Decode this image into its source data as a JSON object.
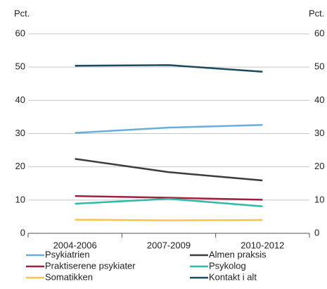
{
  "chart_data": {
    "type": "line",
    "ylabel": "Pct.",
    "y2label": "Pct.",
    "categories": [
      "2004-2006",
      "2007-2009",
      "2010-2012"
    ],
    "series": [
      {
        "name": "Psykiatrien",
        "color": "#6aaede",
        "values": [
          30.2,
          31.8,
          32.6
        ]
      },
      {
        "name": "Almen praksis",
        "color": "#3d3d3d",
        "values": [
          22.4,
          18.4,
          15.9
        ]
      },
      {
        "name": "Praktiserene psykiater",
        "color": "#a31e3f",
        "values": [
          11.2,
          10.7,
          10.1
        ]
      },
      {
        "name": "Psykolog",
        "color": "#2fbba5",
        "values": [
          8.9,
          10.4,
          8.1
        ]
      },
      {
        "name": "Somatikken",
        "color": "#f7c548",
        "values": [
          4.1,
          3.9,
          4.0
        ]
      },
      {
        "name": "Kontakt i alt",
        "color": "#1b4b5c",
        "values": [
          50.4,
          50.6,
          48.6
        ]
      }
    ],
    "ylim": [
      0,
      60
    ],
    "yticks": [
      0,
      10,
      20,
      30,
      40,
      50,
      60
    ],
    "y2lim": [
      0,
      60
    ],
    "y2ticks": [
      0,
      10,
      20,
      30,
      40,
      50,
      60
    ],
    "grid": true,
    "legend": "bottom"
  }
}
